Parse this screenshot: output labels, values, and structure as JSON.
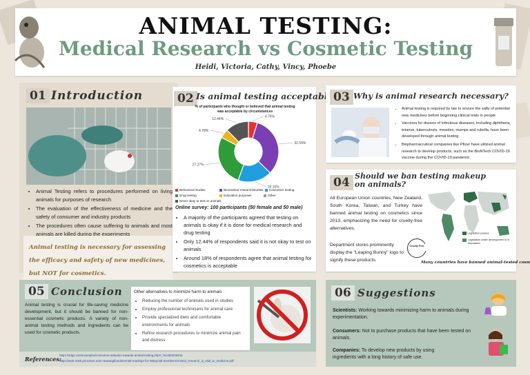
{
  "header": {
    "title": "ANIMAL TESTING:",
    "subtitle": "Medical Research vs Cosmetic Testing",
    "authors": "Heidi, Victoria, Cathy, Vincy, Phoebe"
  },
  "intro": {
    "num": "01",
    "heading": "Introduction",
    "bullets": [
      "Animal Testing refers to procedures performed on living animals for purposes of research",
      "The evaluation of the effectiveness of medicine and the safety of consumer and industry products",
      "The procedures often cause suffering to animals and most animals are killed during the experiments"
    ],
    "quote": "Animal testing is necessary for assessing the efficacy and safety of new medicines, but NOT for cosmetics."
  },
  "acceptable": {
    "num": "02",
    "heading": "Is animal testing acceptable?",
    "survey": "Online survey: 100 participants (50 female and 50 male)",
    "bullets": [
      "A majority of the participants agreed that testing on animals is okay if it is done for medical research and drug testing",
      "Only 12.44% of respondents said it is not okay to test on animals",
      "Around 18% of respondents agree that animal testing for cosmetics is acceptable"
    ]
  },
  "chart_data": {
    "type": "pie",
    "title": "% of participants who thought or believed that animal testing was acceptable by circumstances",
    "slices": [
      {
        "label": "Behavioral studies",
        "value": 4.76,
        "color": "#e8322b",
        "display": "4.76%"
      },
      {
        "label": "Biomedical research/studies",
        "value": 32.54,
        "color": "#7a3fb5",
        "display": "32.54%"
      },
      {
        "label": "Cosmetics testing",
        "value": 18.16,
        "color": "#1f9ee0",
        "display": "18.16%"
      },
      {
        "label": "Drug testing",
        "value": 27.27,
        "color": "#2e9c3a",
        "display": "27.27%"
      },
      {
        "label": "Education purposes",
        "value": 4.78,
        "color": "#f0b21c",
        "display": "4.78%"
      },
      {
        "label": "Other",
        "value": 0,
        "color": "#999999",
        "display": ""
      },
      {
        "label": "Never okay to test on animals",
        "value": 12.44,
        "color": "#555555",
        "display": "12.44%"
      }
    ],
    "legend_placement": "bottom"
  },
  "why": {
    "num": "03",
    "heading": "Why is animal research necessary?",
    "bullets": [
      "Animal testing is required by law to ensure the safty of potential new medicines before beginning clinical trials in people",
      "Vaccines for dozens of infectious diseases, including diphtheria, tetanus, tuberculosis, measles, mumps and rubella, have been developed through animal testing",
      "Biopharmacrutical companies like Pfizer have utilized animal research to develop products, such as the BioNTech COVID-19 vaccine during the COVID-19 pandemic"
    ]
  },
  "ban": {
    "num": "04",
    "heading": "Should we ban testing makeup on animals?",
    "p1": "All European Union countries, New Zealand, South Korea, Taiwan, and Turkey have banned animal testing on cosmetics since 2013, emphasizing the need for cruelty-free alternatives.",
    "p2": "Department stores prominently display the \"Leaping Bunny\" logo to signify these products.",
    "map_caption": "Many countries have banned animal-tested cosmetics.",
    "legend_passed": "Legislation passed",
    "legend_dev": "Legislation under development or in discussion",
    "logo_text": "Cruelty Free"
  },
  "conclusion": {
    "num": "05",
    "heading": "Conclusion",
    "text": "Animal testing is crucial for life-saving medicine development, but it should be banned for non-essential cosmetic products. A variety of non-animal testing methods and ingredients can be used for cosmetic products.",
    "alt_title": "Other alternatives  to minimize harm to animals :",
    "alts": [
      "Reducing the number of animals used in studies",
      "Employ professional technicians for animal care",
      "Provide specialized diets and comfortable environments for animals",
      "Refine research procedures to minimize animal pain and distress"
    ]
  },
  "references": {
    "label": "References:",
    "links": [
      "https://sdgs.com/examples/consumer-attitudes-towards-animal-testing.php#_Toc483029433",
      "https://web.math.princeton.edu/~aswang/fundamental-readings-for-Wang-lab-members/Animal_research_is_vital_to_medicine.pdf"
    ]
  },
  "suggestions": {
    "num": "06",
    "heading": "Suggestions",
    "items": [
      {
        "bold": "Scientists:",
        "text": " Working towards minimizing harm to animals during experimentation."
      },
      {
        "bold": "Consumers:",
        "text": " Not to purchase products that have been tested on animals."
      },
      {
        "bold": "Companies:",
        "text": " To develop new products by using ingredients with a long history of safe use."
      }
    ]
  }
}
